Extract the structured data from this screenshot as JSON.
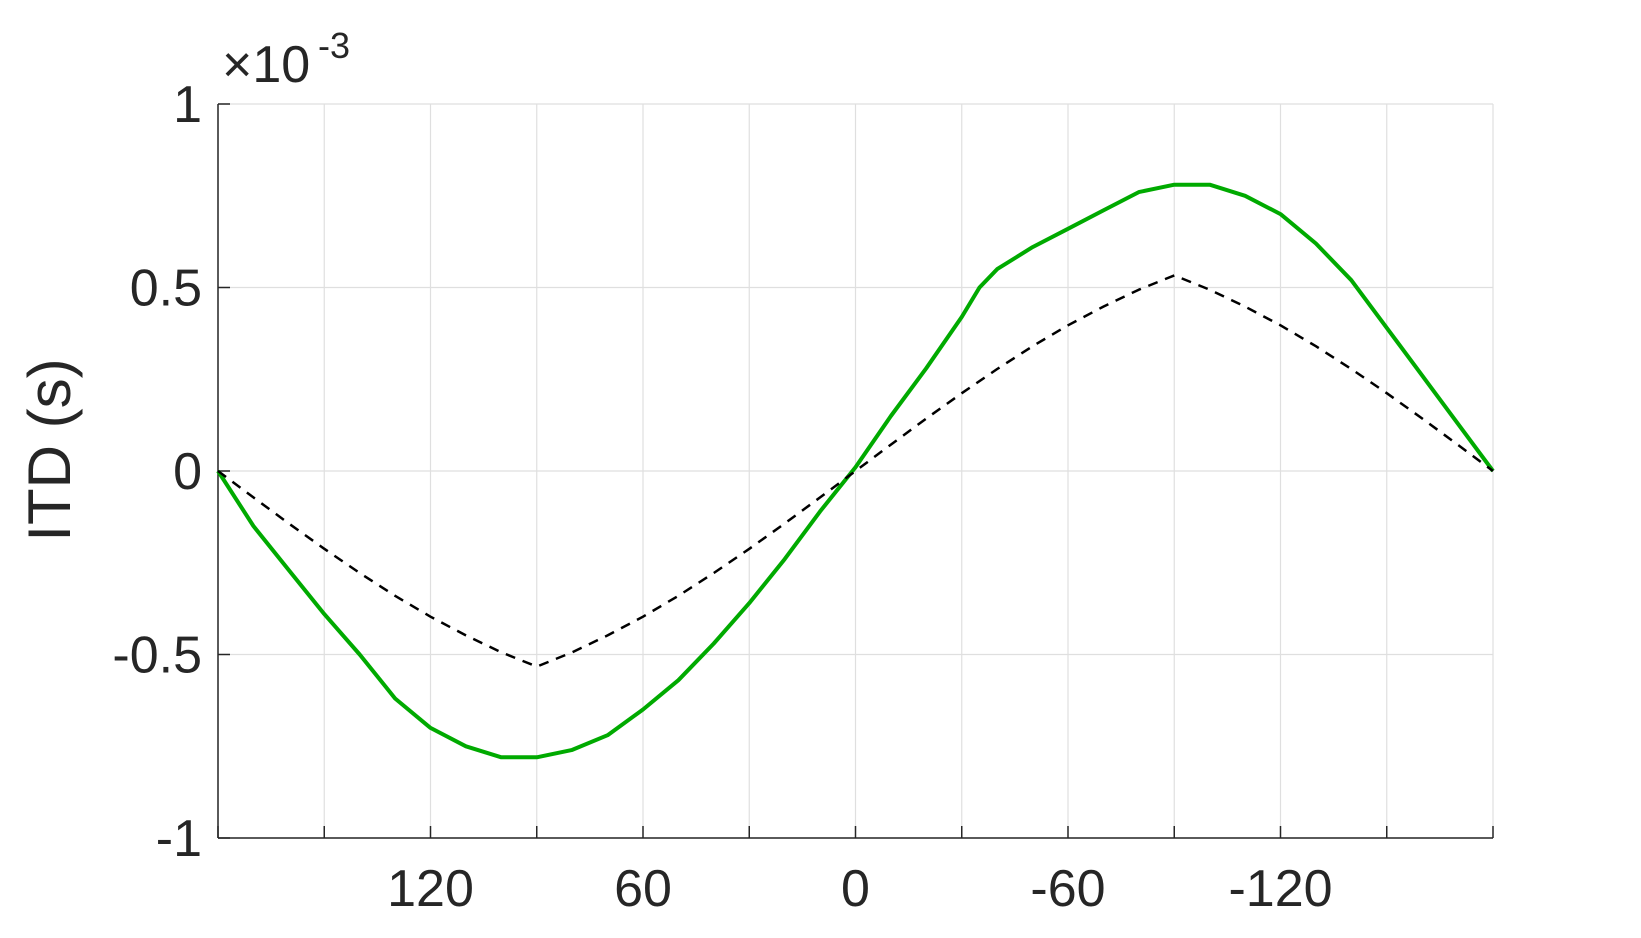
{
  "chart_data": {
    "type": "line",
    "title": "",
    "xlabel": "",
    "ylabel": "ITD (s)",
    "y_multiplier": {
      "base": "×10",
      "exponent": "-3"
    },
    "xlim": [
      180,
      -180
    ],
    "x_reversed": true,
    "ylim": [
      -1,
      1
    ],
    "y_scale_note_value": 0.001,
    "grid": true,
    "legend": "none",
    "x_ticks": [
      180,
      150,
      120,
      90,
      60,
      30,
      0,
      -30,
      -60,
      -90,
      -120,
      -150,
      -180
    ],
    "x_tick_labels": [
      {
        "value": 120,
        "label": "120"
      },
      {
        "value": 60,
        "label": "60"
      },
      {
        "value": 0,
        "label": "0"
      },
      {
        "value": -60,
        "label": "-60"
      },
      {
        "value": -120,
        "label": "-120"
      }
    ],
    "y_tick_labels": [
      {
        "value": 1,
        "label": "1"
      },
      {
        "value": 0.5,
        "label": "0.5"
      },
      {
        "value": 0,
        "label": "0"
      },
      {
        "value": -0.5,
        "label": "-0.5"
      },
      {
        "value": -1,
        "label": "-1"
      }
    ],
    "series": [
      {
        "color": "#00aa00",
        "style": "solid",
        "x": [
          180,
          170,
          160,
          150,
          140,
          130,
          120,
          110,
          100,
          90,
          80,
          70,
          60,
          50,
          40,
          30,
          20,
          10,
          0,
          -10,
          -20,
          -30,
          -35,
          -40,
          -50,
          -60,
          -70,
          -80,
          -90,
          -100,
          -110,
          -120,
          -130,
          -140,
          -150,
          -160,
          -170,
          -180
        ],
        "y": [
          0,
          -0.15,
          -0.27,
          -0.39,
          -0.5,
          -0.62,
          -0.7,
          -0.75,
          -0.78,
          -0.78,
          -0.76,
          -0.72,
          -0.65,
          -0.57,
          -0.47,
          -0.36,
          -0.24,
          -0.11,
          0.01,
          0.15,
          0.28,
          0.42,
          0.5,
          0.55,
          0.61,
          0.66,
          0.71,
          0.76,
          0.78,
          0.78,
          0.75,
          0.7,
          0.62,
          0.52,
          0.39,
          0.26,
          0.13,
          0
        ]
      },
      {
        "color": "#000000",
        "style": "dashed",
        "x": [
          180,
          170,
          160,
          150,
          140,
          130,
          120,
          110,
          100,
          90,
          80,
          70,
          60,
          50,
          40,
          30,
          20,
          10,
          0,
          -10,
          -20,
          -30,
          -40,
          -50,
          -60,
          -70,
          -80,
          -90,
          -100,
          -110,
          -120,
          -130,
          -140,
          -150,
          -160,
          -170,
          -180
        ],
        "y": [
          0,
          -0.072,
          -0.143,
          -0.212,
          -0.278,
          -0.34,
          -0.397,
          -0.448,
          -0.494,
          -0.533,
          -0.494,
          -0.448,
          -0.397,
          -0.34,
          -0.278,
          -0.212,
          -0.143,
          -0.072,
          0,
          0.072,
          0.143,
          0.212,
          0.278,
          0.34,
          0.397,
          0.448,
          0.494,
          0.533,
          0.494,
          0.448,
          0.397,
          0.34,
          0.278,
          0.212,
          0.143,
          0.072,
          0
        ]
      }
    ]
  }
}
